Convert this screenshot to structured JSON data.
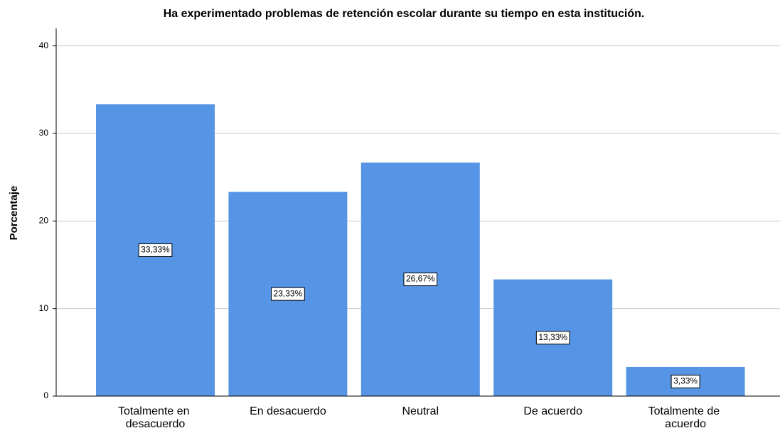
{
  "chart_data": {
    "type": "bar",
    "title": "Ha experimentado problemas de retención escolar durante su tiempo en esta institución.",
    "y_label": "Porcentaje",
    "categories": [
      "Totalmente en desacuerdo",
      "En desacuerdo",
      "Neutral",
      "De acuerdo",
      "Totalmente de acuerdo"
    ],
    "values": [
      33.33,
      23.33,
      26.67,
      13.33,
      3.33
    ],
    "value_labels": [
      "33,33%",
      "23,33%",
      "26,67%",
      "13,33%",
      "3,33%"
    ],
    "color": "#5694e5",
    "ylim": [
      0,
      42
    ],
    "yticks": [
      0,
      10,
      20,
      30,
      40
    ],
    "grid": true
  }
}
